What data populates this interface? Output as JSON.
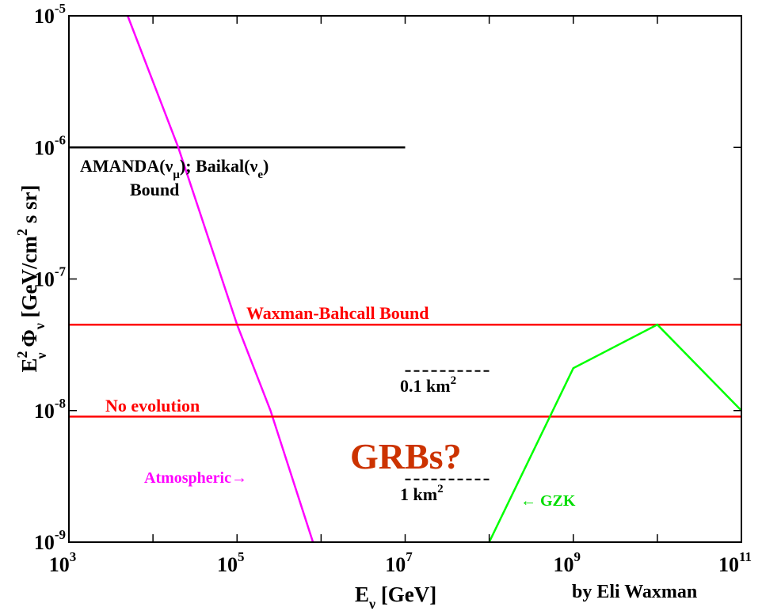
{
  "chart_data": {
    "type": "line",
    "x_scale": "log",
    "y_scale": "log",
    "xlim": [
      1000,
      100000000000
    ],
    "ylim": [
      1e-09,
      1e-05
    ],
    "grid": false,
    "xlabel": {
      "main": "E",
      "sub": "ν",
      "rest": " [GeV]"
    },
    "ylabel": {
      "a": "E",
      "a_sup": "2",
      "a_sub": "ν",
      "b": " Φ",
      "b_sub": "ν",
      "c": "  [GeV/cm",
      "c_sup": "2",
      "d": " s sr]"
    },
    "x_ticks": [
      {
        "value": 1000,
        "base": "10",
        "exp": "3"
      },
      {
        "value": 100000,
        "base": "10",
        "exp": "5"
      },
      {
        "value": 10000000,
        "base": "10",
        "exp": "7"
      },
      {
        "value": 1000000000,
        "base": "10",
        "exp": "9"
      },
      {
        "value": 100000000000,
        "base": "10",
        "exp": "11"
      }
    ],
    "y_ticks": [
      {
        "value": 1e-09,
        "base": "10",
        "exp": "-9"
      },
      {
        "value": 1e-08,
        "base": "10",
        "exp": "-8"
      },
      {
        "value": 1e-07,
        "base": "10",
        "exp": "-7"
      },
      {
        "value": 1e-06,
        "base": "10",
        "exp": "-6"
      },
      {
        "value": 1e-05,
        "base": "10",
        "exp": "-5"
      }
    ],
    "series": [
      {
        "key": "amanda",
        "color": "#000000",
        "dash": false,
        "points": [
          [
            1000,
            1e-06
          ],
          [
            10000000,
            1e-06
          ]
        ]
      },
      {
        "key": "atmospheric",
        "color": "#ff00ff",
        "dash": false,
        "points": [
          [
            5000,
            1e-05
          ],
          [
            20000,
            1e-06
          ],
          [
            100000,
            4.5e-08
          ],
          [
            250000,
            1e-08
          ],
          [
            800000,
            1e-09
          ]
        ]
      },
      {
        "key": "waxman_bahcall",
        "color": "#ff0000",
        "dash": false,
        "points": [
          [
            1000,
            4.5e-08
          ],
          [
            100000000000,
            4.5e-08
          ]
        ]
      },
      {
        "key": "no_evolution",
        "color": "#ff0000",
        "dash": false,
        "points": [
          [
            1000,
            9e-09
          ],
          [
            100000000000,
            9e-09
          ]
        ]
      },
      {
        "key": "gzk",
        "color": "#00ff00",
        "dash": false,
        "points": [
          [
            100000000,
            1e-09
          ],
          [
            1000000000,
            2.1e-08
          ],
          [
            10000000000,
            4.5e-08
          ],
          [
            100000000000,
            1e-08
          ]
        ]
      },
      {
        "key": "km2_01",
        "color": "#000000",
        "dash": true,
        "points": [
          [
            10000000,
            2e-08
          ],
          [
            100000000,
            2e-08
          ]
        ]
      },
      {
        "key": "km2_1",
        "color": "#000000",
        "dash": true,
        "points": [
          [
            10000000,
            3e-09
          ],
          [
            100000000,
            3e-09
          ]
        ]
      }
    ],
    "annotations": {
      "amanda": {
        "a": "AMANDA(ν",
        "a_sub": "μ",
        "b": "); Baikal(ν",
        "b_sub": "e",
        "c": ")",
        "line2": "Bound"
      },
      "waxman_bahcall": "Waxman-Bahcall Bound",
      "no_evolution": "No evolution",
      "atmospheric": "Atmospheric→",
      "gzk": "← GZK",
      "grbs": "GRBs?",
      "km01": {
        "text": "0.1 km",
        "sup": "2"
      },
      "km1": {
        "text": "1 km",
        "sup": "2"
      },
      "credit": "by Eli Waxman"
    },
    "colors": {
      "axis": "#000000",
      "red": "#ff0000",
      "magenta": "#ff00ff",
      "green": "#00ff00",
      "grbs": "#cc3300"
    }
  }
}
